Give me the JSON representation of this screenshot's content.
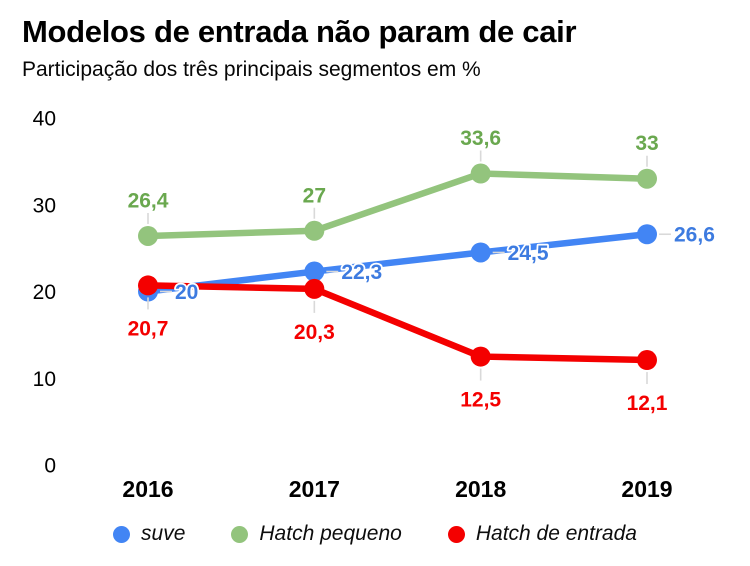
{
  "chart_data": {
    "type": "line",
    "title": "Modelos de entrada não param de cair",
    "subtitle": "Participação dos três principais segmentos em %",
    "categories": [
      "2016",
      "2017",
      "2018",
      "2019"
    ],
    "series": [
      {
        "name": "suve",
        "color": "#4285f4",
        "label_color": "#3d7be0",
        "values": [
          20,
          22.3,
          24.5,
          26.6
        ],
        "label_position": "right"
      },
      {
        "name": "Hatch pequeno",
        "color": "#93c47d",
        "label_color": "#6aa84f",
        "values": [
          26.4,
          27,
          33.6,
          33
        ],
        "label_position": "above"
      },
      {
        "name": "Hatch de entrada",
        "color": "#f40000",
        "label_color": "#f40000",
        "values": [
          20.7,
          20.3,
          12.5,
          12.1
        ],
        "label_position": "below"
      }
    ],
    "xlabel": "",
    "ylabel": "",
    "ylim": [
      0,
      40
    ],
    "yticks": [
      0,
      10,
      20,
      30,
      40
    ],
    "grid": false,
    "legend_position": "bottom",
    "decimal_separator": ",",
    "axis_text_color": "#000000",
    "leader_line_color": "#d9d9d9"
  }
}
